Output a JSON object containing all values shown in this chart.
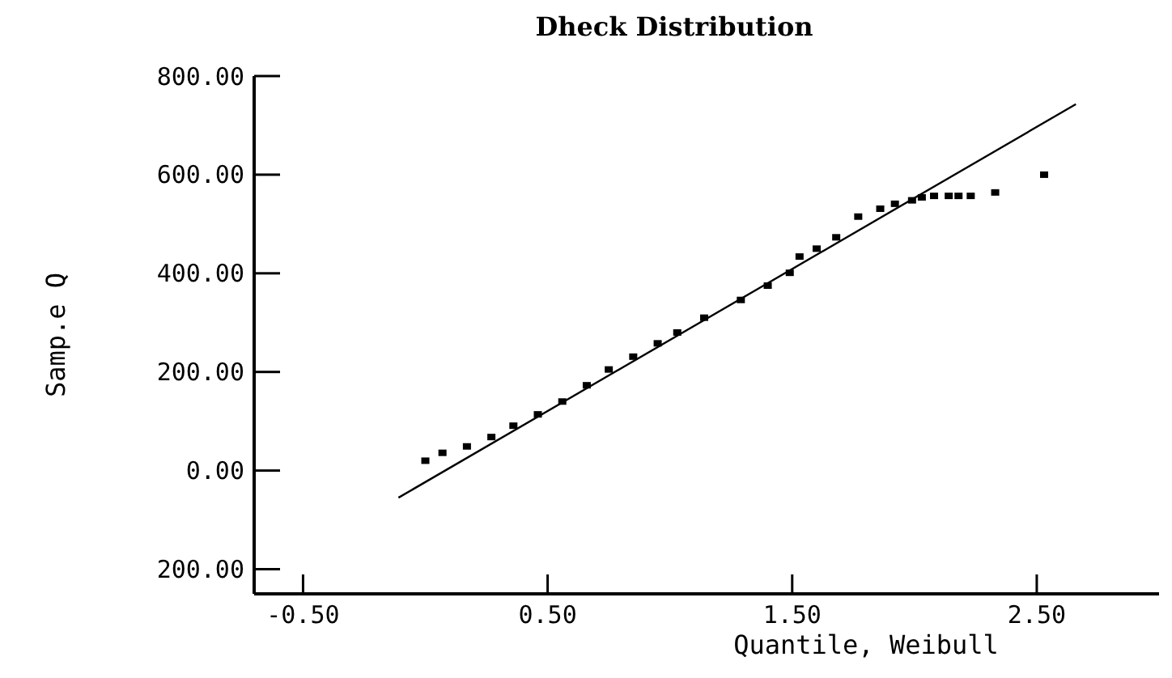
{
  "chart_data": {
    "type": "scatter",
    "title": "Dheck Distribution",
    "xlabel": "Quantile, Weibull",
    "ylabel": "Samp.e Q",
    "marker": "square",
    "xlim": [
      -0.7,
      3.0
    ],
    "ylim": [
      -250,
      800
    ],
    "xticks": [
      {
        "value": -0.5,
        "label": "-0.50"
      },
      {
        "value": 0.5,
        "label": "0.50"
      },
      {
        "value": 1.5,
        "label": "1.50"
      },
      {
        "value": 2.5,
        "label": "2.50"
      }
    ],
    "yticks": [
      {
        "value": 800,
        "label": "800.00"
      },
      {
        "value": 600,
        "label": "600.00"
      },
      {
        "value": 400,
        "label": "400.00"
      },
      {
        "value": 200,
        "label": "200.00"
      },
      {
        "value": 0,
        "label": "0.00"
      },
      {
        "value": -200,
        "label": "200.00"
      }
    ],
    "series": [
      {
        "color": "#000000",
        "x": [
          0.0,
          0.07,
          0.17,
          0.27,
          0.36,
          0.46,
          0.56,
          0.66,
          0.75,
          0.85,
          0.95,
          1.03,
          1.14,
          1.29,
          1.4,
          1.49,
          1.53,
          1.6,
          1.68,
          1.77,
          1.86,
          1.92,
          1.99,
          2.03,
          2.08,
          2.14,
          2.18,
          2.23,
          2.33,
          2.53
        ],
        "values": [
          20,
          36,
          49,
          68,
          91,
          114,
          140,
          173,
          205,
          231,
          258,
          280,
          310,
          346,
          375,
          401,
          434,
          450,
          473,
          515,
          531,
          541,
          548,
          554,
          557,
          557,
          557,
          557,
          564,
          600
        ]
      },
      {
        "type": "line",
        "color": "#000000",
        "marker": "none",
        "x": [
          -0.11,
          2.66
        ],
        "values": [
          -55,
          743
        ]
      }
    ]
  }
}
